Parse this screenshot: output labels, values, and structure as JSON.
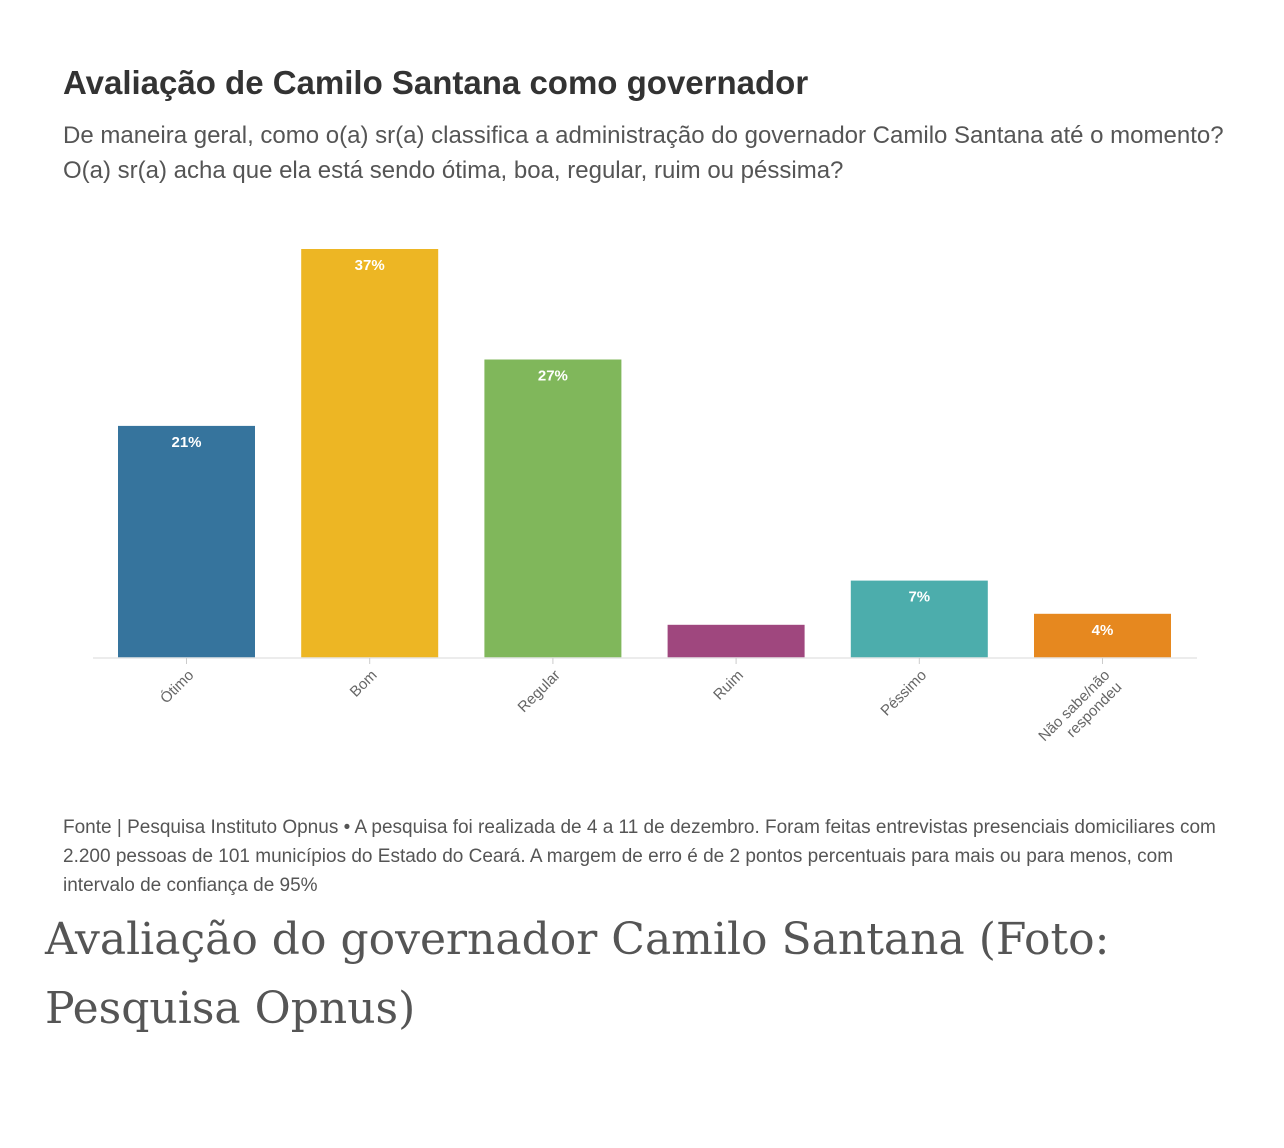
{
  "chart_data": {
    "type": "bar",
    "title": "Avaliação de Camilo Santana como governador",
    "subtitle": "De maneira geral, como o(a) sr(a) classifica a administração do governador Camilo Santana até o momento? O(a) sr(a) acha que ela está sendo ótima, boa, regular, ruim ou péssima?",
    "categories": [
      "Ótimo",
      "Bom",
      "Regular",
      "Ruim",
      "Péssimo",
      "Não sabe/não respondeu"
    ],
    "values": [
      21,
      37,
      27,
      3,
      7,
      4
    ],
    "value_labels": [
      "21%",
      "37%",
      "27%",
      "",
      "7%",
      "4%"
    ],
    "colors": [
      "#36749d",
      "#edb624",
      "#80b75b",
      "#9f477e",
      "#4cadac",
      "#e6881f"
    ],
    "ylim": [
      0,
      37
    ],
    "grid": false,
    "legend": "none",
    "source": "Fonte | Pesquisa Instituto Opnus • A pesquisa foi realizada de 4 a 11 de dezembro. Foram feitas entrevistas presenciais domiciliares com 2.200 pessoas de 101 municípios do Estado do Ceará. A margem de erro é de 2 pontos percentuais para mais ou para menos, com intervalo de confiança de 95%"
  },
  "caption": "Avaliação do governador Camilo Santana (Foto: Pesquisa Opnus)"
}
